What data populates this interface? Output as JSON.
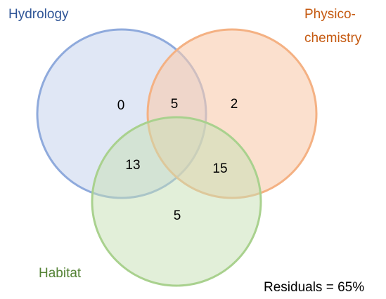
{
  "sets": [
    {
      "label": [
        "Hydrology"
      ]
    },
    {
      "label": [
        "Physico-",
        "chemistry"
      ]
    },
    {
      "label": [
        "Habitat"
      ]
    }
  ],
  "regions": [
    0,
    5,
    2,
    13,
    15,
    5
  ],
  "residuals": "Residuals = 65%"
}
